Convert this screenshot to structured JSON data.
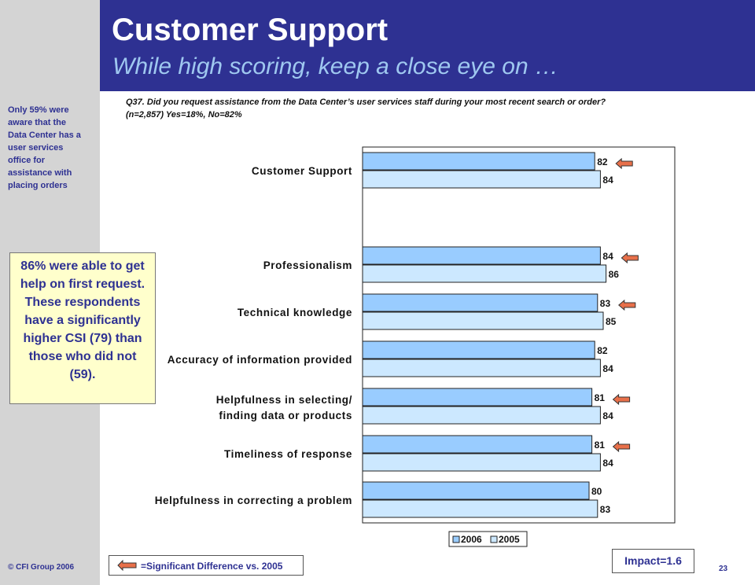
{
  "header": {
    "title": "Customer Support",
    "subtitle": "While high scoring, keep a close eye on …"
  },
  "sidebar": {
    "note": "Only 59% were aware that the Data Center has a user services office for assistance with placing orders",
    "callout": "86% were able to get help on first request. These respondents have a significantly higher CSI (79) than those who did not (59).",
    "copyright": "© CFI Group 2006"
  },
  "question": {
    "line1": "Q37.  Did you request assistance from the Data Center’s user services staff during your most recent search or order?",
    "line2": "(n=2,857)  Yes=18%, No=82%"
  },
  "legend_box": {
    "significant_label": "=Significant Difference  vs.  2005"
  },
  "impact": "Impact=1.6",
  "page_number": "23",
  "colors": {
    "header_band": "#2e3192",
    "subtitle": "#9fc8f0",
    "series_2006": "#99ccff",
    "series_2005": "#cce8ff",
    "significance_arrow": "#e8704a"
  },
  "icons": {
    "significance": "left-arrow-icon"
  },
  "chart_data": {
    "type": "bar",
    "orientation": "horizontal",
    "categories": [
      [
        "Customer Support"
      ],
      [
        "Professionalism"
      ],
      [
        "Technical knowledge"
      ],
      [
        "Accuracy of information provided"
      ],
      [
        "Helpfulness in selecting/",
        "finding data or products"
      ],
      [
        "Timeliness of response"
      ],
      [
        "Helpfulness in correcting a problem"
      ]
    ],
    "series": [
      {
        "name": "2006",
        "values": [
          82,
          84,
          83,
          82,
          81,
          81,
          80
        ]
      },
      {
        "name": "2005",
        "values": [
          84,
          86,
          85,
          84,
          84,
          84,
          83
        ]
      }
    ],
    "significant_difference": [
      true,
      true,
      true,
      false,
      true,
      true,
      false
    ],
    "xlim": [
      0,
      100
    ],
    "grid": false,
    "legend_position": "bottom"
  }
}
